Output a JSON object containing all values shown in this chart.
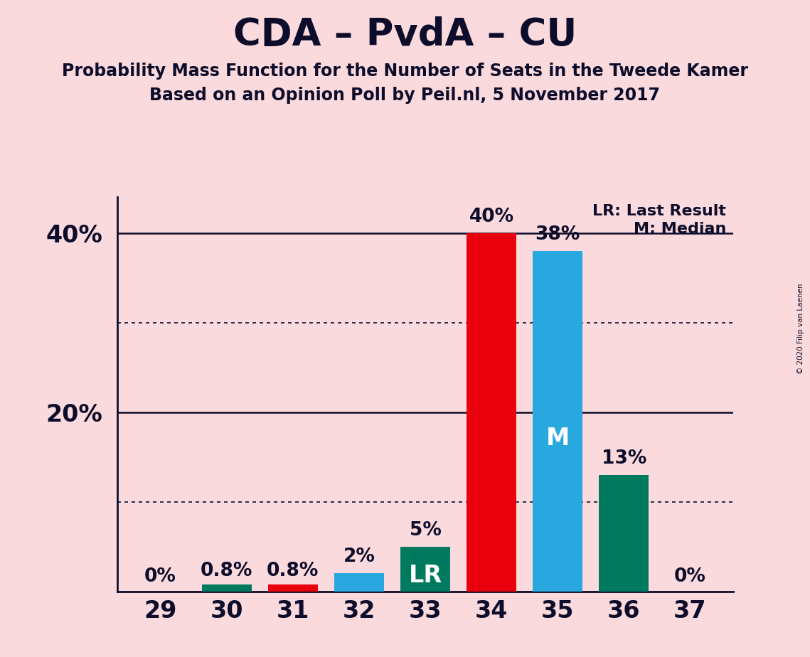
{
  "title": "CDA – PvdA – CU",
  "subtitle1": "Probability Mass Function for the Number of Seats in the Tweede Kamer",
  "subtitle2": "Based on an Opinion Poll by Peil.nl, 5 November 2017",
  "copyright": "© 2020 Filip van Laenen",
  "seats": [
    29,
    30,
    31,
    32,
    33,
    34,
    35,
    36,
    37
  ],
  "values": [
    0.0,
    0.8,
    0.8,
    2.0,
    5.0,
    40.0,
    38.0,
    13.0,
    0.0
  ],
  "bar_colors": [
    "#FADADD",
    "#007A5E",
    "#E8000D",
    "#29A8E0",
    "#007A5E",
    "#E8000D",
    "#29A8E0",
    "#007A5E",
    "#FADADD"
  ],
  "bar_labels": [
    "0%",
    "0.8%",
    "0.8%",
    "2%",
    "5%",
    "40%",
    "38%",
    "13%",
    "0%"
  ],
  "special_labels": {
    "33": "LR",
    "35": "M"
  },
  "ylim": [
    0,
    44
  ],
  "background_color": "#FADADD",
  "legend_lr": "LR: Last Result",
  "legend_m": "M: Median",
  "title_fontsize": 38,
  "subtitle_fontsize": 17,
  "bar_label_fontsize": 19,
  "special_label_fontsize": 24,
  "ytick_fontsize": 24,
  "xtick_fontsize": 24,
  "text_color": "#0d0d2b"
}
